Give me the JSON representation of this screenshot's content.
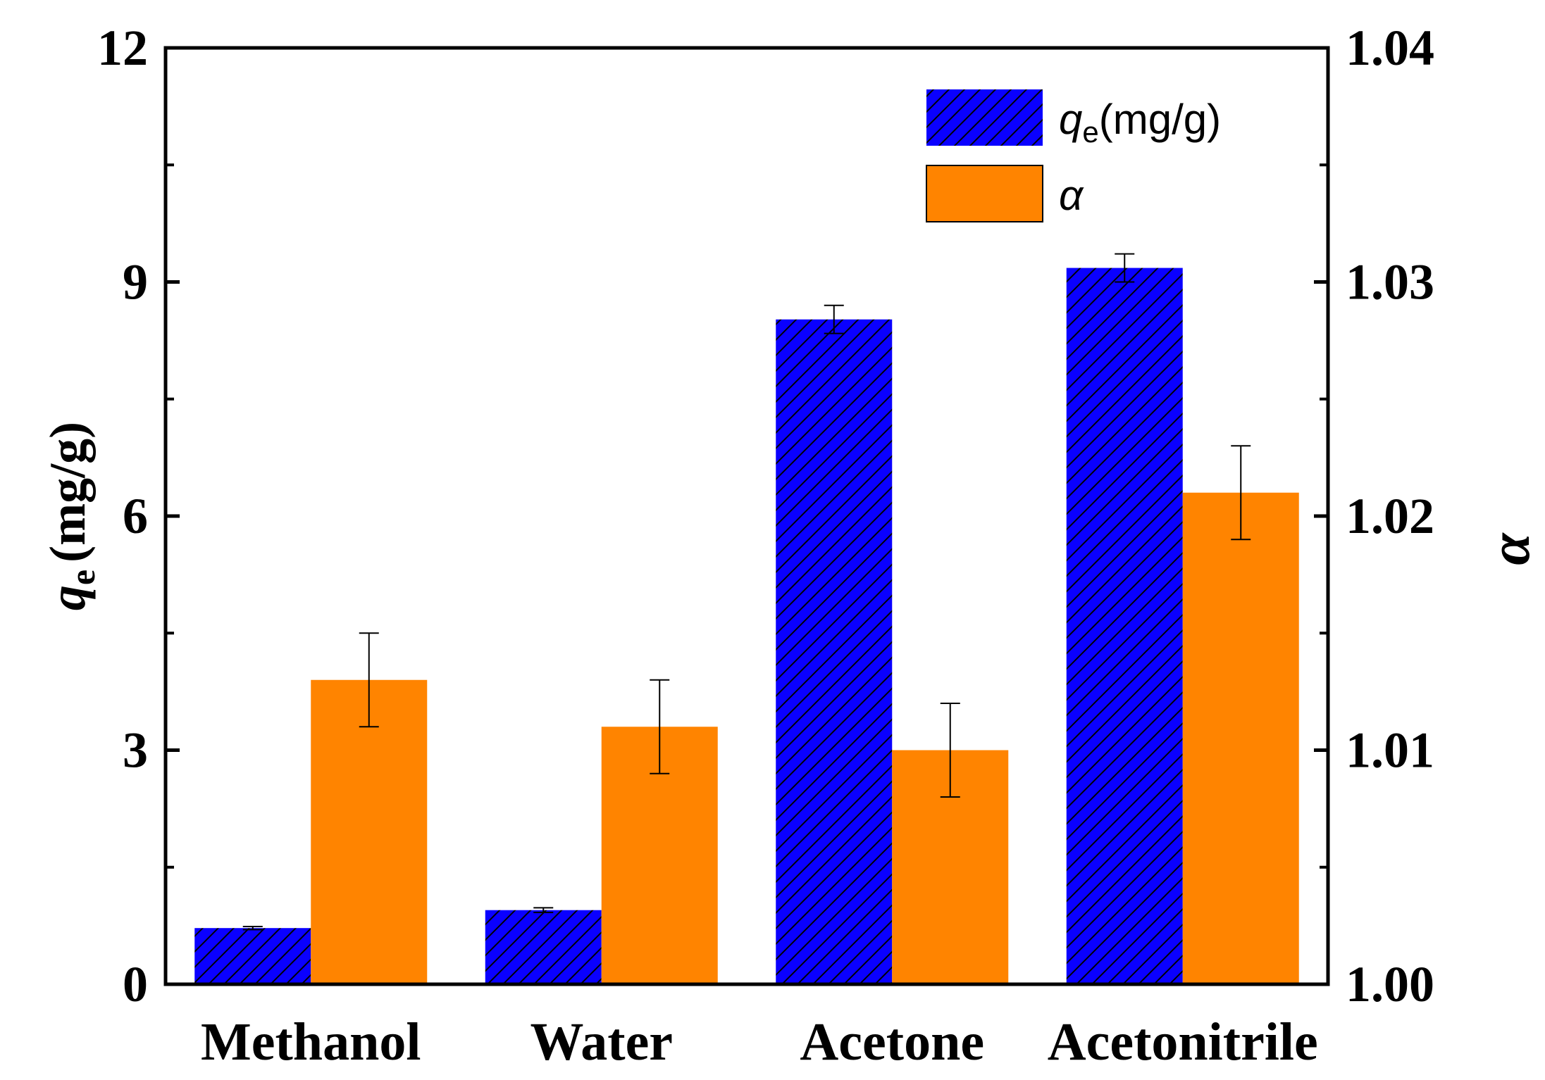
{
  "chart_data": {
    "type": "bar",
    "categories": [
      "Methanol",
      "Water",
      "Acetone",
      "Acetonitrile"
    ],
    "series": [
      {
        "name": "qe(mg/g)",
        "name_parts": {
          "symbol": "q",
          "subscript": "e",
          "unit": "(mg/g)"
        },
        "axis": "left",
        "values": [
          0.72,
          0.95,
          8.52,
          9.18
        ],
        "errors": [
          0.02,
          0.03,
          0.18,
          0.18
        ],
        "color": "#0a00ff",
        "pattern": "diagonal-hatch"
      },
      {
        "name": "α",
        "axis": "right",
        "values": [
          1.013,
          1.011,
          1.01,
          1.021
        ],
        "errors": [
          0.002,
          0.002,
          0.002,
          0.002
        ],
        "color": "#ff8400",
        "pattern": "solid"
      }
    ],
    "y_left": {
      "label_parts": {
        "symbol": "q",
        "subscript": "e",
        "unit": "(mg/g)"
      },
      "range": [
        0,
        12
      ],
      "ticks": [
        0,
        3,
        6,
        9,
        12
      ],
      "minor_ticks": [
        1.5,
        4.5,
        7.5,
        10.5
      ]
    },
    "y_right": {
      "label": "α",
      "range": [
        1.0,
        1.04
      ],
      "ticks": [
        1.0,
        1.01,
        1.02,
        1.03,
        1.04
      ],
      "tick_labels": [
        "1.00",
        "1.01",
        "1.02",
        "1.03",
        "1.04"
      ],
      "minor_ticks": [
        1.005,
        1.015,
        1.025,
        1.035
      ]
    },
    "legend_position": "top-right",
    "grid": false
  },
  "colors": {
    "blue": "#0a00ff",
    "orange": "#ff8400",
    "axis": "#000000"
  }
}
